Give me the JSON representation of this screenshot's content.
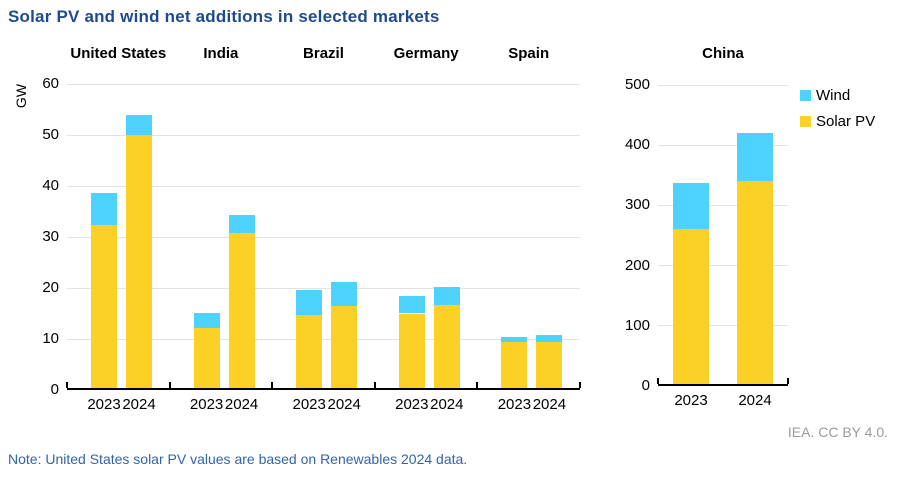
{
  "title": "Solar PV and wind net additions in selected markets",
  "note": "Note: United States solar PV values are based on Renewables 2024 data.",
  "attribution": "IEA. CC BY 4.0.",
  "unit_label": "GW",
  "colors": {
    "solar_pv": "#FCD126",
    "wind": "#4CD2FC",
    "title_text": "#1F4B8E",
    "note_text": "#3364A8",
    "attribution_text": "#9B9B9B",
    "gridline": "#E3E3E3",
    "axis": "#000000"
  },
  "legend": [
    {
      "label": "Wind",
      "color_key": "wind"
    },
    {
      "label": "Solar PV",
      "color_key": "solar_pv"
    }
  ],
  "chart_data": [
    {
      "type": "bar",
      "stacked": true,
      "panel": "selected markets",
      "ylabel": "GW",
      "ylim": [
        0,
        60
      ],
      "yticks": [
        0,
        10,
        20,
        30,
        40,
        50,
        60
      ],
      "grid": true,
      "series_names": [
        "Solar PV",
        "Wind"
      ],
      "groups": [
        {
          "name": "United States",
          "x": [
            "2023",
            "2024"
          ],
          "solar_pv": [
            32.3,
            50.0
          ],
          "wind": [
            6.4,
            4.0
          ]
        },
        {
          "name": "India",
          "x": [
            "2023",
            "2024"
          ],
          "solar_pv": [
            12.1,
            30.8
          ],
          "wind": [
            3.0,
            3.5
          ]
        },
        {
          "name": "Brazil",
          "x": [
            "2023",
            "2024"
          ],
          "solar_pv": [
            14.7,
            16.5
          ],
          "wind": [
            5.0,
            4.6
          ]
        },
        {
          "name": "Germany",
          "x": [
            "2023",
            "2024"
          ],
          "solar_pv": [
            15.0,
            16.7
          ],
          "wind": [
            3.5,
            3.4
          ]
        },
        {
          "name": "Spain",
          "x": [
            "2023",
            "2024"
          ],
          "solar_pv": [
            9.5,
            9.5
          ],
          "wind": [
            0.8,
            1.2
          ]
        }
      ]
    },
    {
      "type": "bar",
      "stacked": true,
      "panel": "China",
      "ylabel": "GW",
      "ylim": [
        0,
        500
      ],
      "yticks": [
        0,
        100,
        200,
        300,
        400,
        500
      ],
      "grid": true,
      "series_names": [
        "Solar PV",
        "Wind"
      ],
      "groups": [
        {
          "name": "China",
          "x": [
            "2023",
            "2024"
          ],
          "solar_pv": [
            260,
            340
          ],
          "wind": [
            77,
            80
          ]
        }
      ]
    }
  ]
}
